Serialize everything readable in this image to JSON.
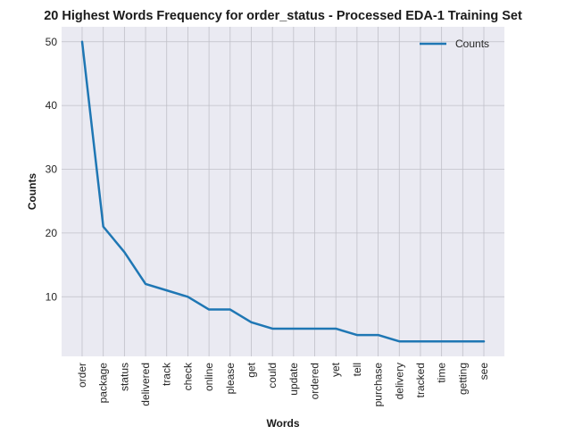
{
  "chart_data": {
    "type": "line",
    "title": "20 Highest Words Frequency for order_status - Processed EDA-1 Training Set",
    "xlabel": "Words",
    "ylabel": "Counts",
    "categories": [
      "order",
      "package",
      "status",
      "delivered",
      "track",
      "check",
      "online",
      "please",
      "get",
      "could",
      "update",
      "ordered",
      "yet",
      "tell",
      "purchase",
      "delivery",
      "tracked",
      "time",
      "getting",
      "see"
    ],
    "series": [
      {
        "name": "Counts",
        "values": [
          50,
          21,
          17,
          12,
          11,
          10,
          8,
          8,
          6,
          5,
          5,
          5,
          5,
          4,
          4,
          3,
          3,
          3,
          3,
          3
        ]
      }
    ],
    "ylim": [
      0.65,
      52.35
    ],
    "yticks": [
      10,
      20,
      30,
      40,
      50
    ],
    "grid": true,
    "legend_position": "top-right",
    "colors": {
      "line": "#1f77b4",
      "plot_background": "#eaeaf2",
      "grid": "#c0c0c8"
    }
  }
}
